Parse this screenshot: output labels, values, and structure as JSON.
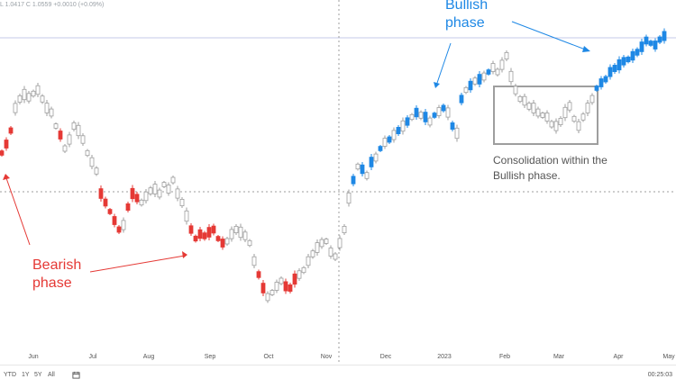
{
  "ohlc_readout": {
    "text": "L 1.0417  C 1.0559  +0.0010 (+0.09%)"
  },
  "range_buttons": [
    "YTD",
    "1Y",
    "5Y",
    "All"
  ],
  "clock": "00:25:03",
  "annotations": {
    "bearish_line1": "Bearish",
    "bearish_line2": "phase",
    "bullish_line1": "Bullish",
    "bullish_line2": "phase",
    "consolidation_line1": "Consolidation within the",
    "consolidation_line2": "Bullish phase."
  },
  "colors": {
    "bearish": "#e53935",
    "bullish": "#1e88e5",
    "neutral": "#9e9e9e",
    "box": "#9e9e9e",
    "crosshair": "#9e9e9e",
    "highline": "#c5cae9",
    "annotation_gray": "#555555"
  },
  "chart_data": {
    "type": "ohlc",
    "x_axis_labels": [
      "Jun",
      "Jul",
      "Aug",
      "Sep",
      "Oct",
      "Nov",
      "Dec",
      "2023",
      "Feb",
      "Mar",
      "Apr",
      "May"
    ],
    "y_range": [
      0,
      420
    ],
    "grid": false,
    "series": [
      {
        "name": "Bearish",
        "segment": [
          [
            0,
            18
          ],
          [
            52,
            30
          ],
          [
            95,
            55
          ],
          [
            130,
            70
          ]
        ],
        "color": "bearish"
      },
      {
        "name": "Bullish",
        "segment": [
          [
            385,
            175
          ],
          [
            445,
            140
          ],
          [
            490,
            125
          ],
          [
            560,
            90
          ],
          [
            640,
            85
          ],
          [
            700,
            55
          ],
          [
            740,
            40
          ]
        ],
        "color": "bullish"
      }
    ],
    "points": [
      [
        0,
        170
      ],
      [
        5,
        160
      ],
      [
        10,
        145
      ],
      [
        15,
        120
      ],
      [
        20,
        110
      ],
      [
        25,
        105
      ],
      [
        30,
        108
      ],
      [
        35,
        104
      ],
      [
        40,
        100
      ],
      [
        45,
        110
      ],
      [
        50,
        120
      ],
      [
        55,
        125
      ],
      [
        60,
        140
      ],
      [
        65,
        150
      ],
      [
        70,
        165
      ],
      [
        75,
        155
      ],
      [
        80,
        140
      ],
      [
        85,
        145
      ],
      [
        90,
        155
      ],
      [
        95,
        170
      ],
      [
        100,
        180
      ],
      [
        105,
        190
      ],
      [
        110,
        215
      ],
      [
        115,
        225
      ],
      [
        120,
        235
      ],
      [
        125,
        245
      ],
      [
        130,
        255
      ],
      [
        135,
        250
      ],
      [
        140,
        230
      ],
      [
        145,
        215
      ],
      [
        150,
        220
      ],
      [
        155,
        225
      ],
      [
        160,
        218
      ],
      [
        165,
        212
      ],
      [
        170,
        210
      ],
      [
        175,
        215
      ],
      [
        180,
        205
      ],
      [
        185,
        210
      ],
      [
        190,
        200
      ],
      [
        195,
        215
      ],
      [
        200,
        225
      ],
      [
        205,
        240
      ],
      [
        210,
        255
      ],
      [
        215,
        265
      ],
      [
        220,
        260
      ],
      [
        225,
        262
      ],
      [
        230,
        258
      ],
      [
        235,
        255
      ],
      [
        240,
        265
      ],
      [
        245,
        270
      ],
      [
        250,
        268
      ],
      [
        255,
        260
      ],
      [
        260,
        255
      ],
      [
        265,
        258
      ],
      [
        270,
        262
      ],
      [
        275,
        270
      ],
      [
        280,
        290
      ],
      [
        285,
        305
      ],
      [
        290,
        320
      ],
      [
        295,
        330
      ],
      [
        300,
        325
      ],
      [
        305,
        318
      ],
      [
        310,
        312
      ],
      [
        315,
        318
      ],
      [
        320,
        320
      ],
      [
        325,
        310
      ],
      [
        330,
        305
      ],
      [
        335,
        300
      ],
      [
        340,
        290
      ],
      [
        345,
        282
      ],
      [
        350,
        275
      ],
      [
        355,
        270
      ],
      [
        360,
        268
      ],
      [
        365,
        280
      ],
      [
        370,
        285
      ],
      [
        375,
        270
      ],
      [
        380,
        255
      ],
      [
        385,
        220
      ],
      [
        390,
        200
      ],
      [
        395,
        185
      ],
      [
        400,
        188
      ],
      [
        405,
        195
      ],
      [
        410,
        180
      ],
      [
        415,
        175
      ],
      [
        420,
        165
      ],
      [
        425,
        158
      ],
      [
        430,
        155
      ],
      [
        435,
        150
      ],
      [
        440,
        145
      ],
      [
        445,
        140
      ],
      [
        450,
        135
      ],
      [
        455,
        130
      ],
      [
        460,
        125
      ],
      [
        465,
        128
      ],
      [
        470,
        130
      ],
      [
        475,
        135
      ],
      [
        480,
        128
      ],
      [
        485,
        124
      ],
      [
        490,
        120
      ],
      [
        495,
        125
      ],
      [
        500,
        140
      ],
      [
        505,
        148
      ],
      [
        510,
        110
      ],
      [
        515,
        100
      ],
      [
        520,
        95
      ],
      [
        525,
        90
      ],
      [
        530,
        88
      ],
      [
        535,
        85
      ],
      [
        540,
        80
      ],
      [
        545,
        75
      ],
      [
        550,
        80
      ],
      [
        555,
        72
      ],
      [
        560,
        62
      ],
      [
        565,
        85
      ],
      [
        570,
        100
      ],
      [
        575,
        110
      ],
      [
        580,
        112
      ],
      [
        585,
        118
      ],
      [
        590,
        120
      ],
      [
        595,
        125
      ],
      [
        600,
        128
      ],
      [
        605,
        130
      ],
      [
        610,
        138
      ],
      [
        615,
        140
      ],
      [
        620,
        135
      ],
      [
        625,
        125
      ],
      [
        630,
        118
      ],
      [
        635,
        132
      ],
      [
        640,
        140
      ],
      [
        645,
        130
      ],
      [
        650,
        120
      ],
      [
        655,
        110
      ],
      [
        660,
        98
      ],
      [
        665,
        92
      ],
      [
        670,
        88
      ],
      [
        675,
        80
      ],
      [
        680,
        76
      ],
      [
        685,
        72
      ],
      [
        690,
        68
      ],
      [
        695,
        66
      ],
      [
        700,
        62
      ],
      [
        705,
        58
      ],
      [
        710,
        52
      ],
      [
        715,
        45
      ],
      [
        720,
        48
      ],
      [
        725,
        50
      ],
      [
        730,
        44
      ],
      [
        735,
        40
      ]
    ]
  }
}
